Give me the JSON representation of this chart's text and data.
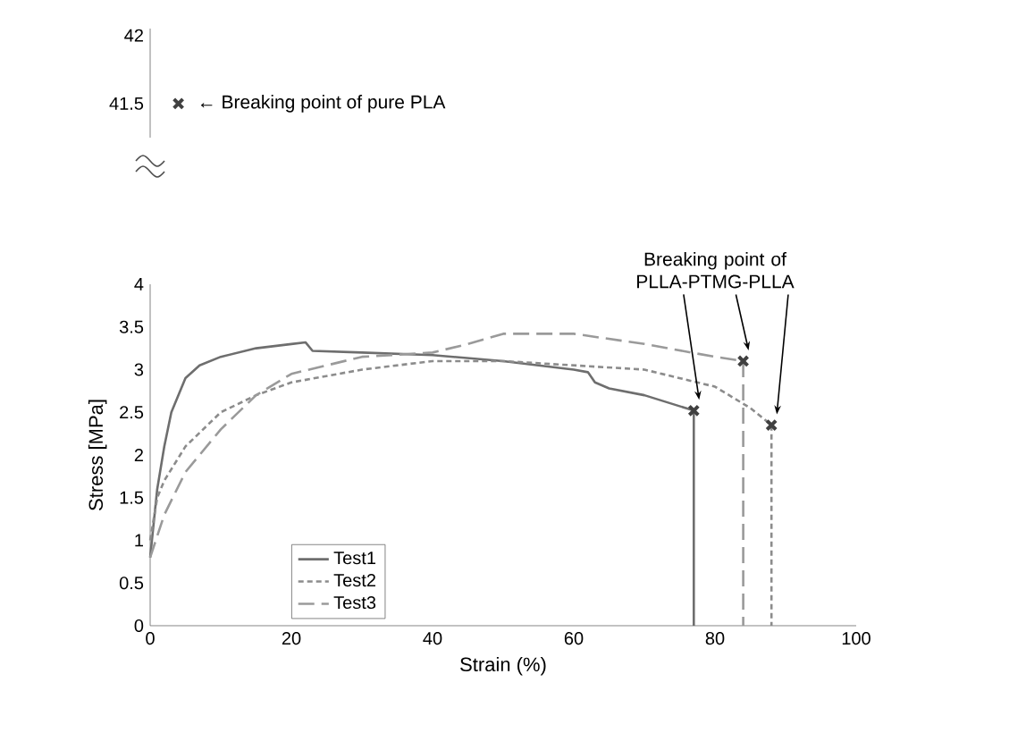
{
  "chart_data": [
    {
      "type": "scatter",
      "xlim": [
        0,
        100
      ],
      "ylim": [
        41.25,
        42.05
      ],
      "yticks": [
        41.5,
        42
      ],
      "tick_labels": "y",
      "grid": false,
      "legend": false,
      "series": [
        {
          "color": "#404040",
          "marker": "cross",
          "x": [
            4
          ],
          "values": [
            41.5
          ]
        }
      ],
      "annotations": [
        {
          "text": "← Breaking point of pure PLA",
          "x": 4,
          "y": 41.5
        }
      ]
    },
    {
      "type": "line",
      "xlabel": "Strain (%)",
      "ylabel": "Stress [MPa]",
      "xlim": [
        0,
        100
      ],
      "ylim": [
        0,
        4
      ],
      "xticks": [
        0,
        20,
        40,
        60,
        80,
        100
      ],
      "yticks": [
        0,
        0.5,
        1,
        1.5,
        2,
        2.5,
        3,
        3.5,
        4
      ],
      "grid": false,
      "legend": "bottom left",
      "series": [
        {
          "name": "Test1",
          "color": "#6e6e6e",
          "line_style": "solid",
          "x": [
            0,
            1,
            2,
            3,
            5,
            7,
            10,
            15,
            20,
            22,
            23,
            30,
            40,
            50,
            60,
            62,
            63,
            65,
            70,
            77,
            77
          ],
          "values": [
            0.8,
            1.6,
            2.1,
            2.5,
            2.9,
            3.05,
            3.15,
            3.25,
            3.3,
            3.32,
            3.22,
            3.2,
            3.17,
            3.1,
            3.0,
            2.97,
            2.85,
            2.78,
            2.7,
            2.52,
            0
          ]
        },
        {
          "name": "Test2",
          "color": "#8c8c8c",
          "line_style": "dotted",
          "x": [
            0,
            1,
            2,
            5,
            10,
            15,
            20,
            30,
            40,
            50,
            60,
            70,
            80,
            85,
            88,
            88
          ],
          "values": [
            1.0,
            1.5,
            1.7,
            2.1,
            2.5,
            2.7,
            2.85,
            3.0,
            3.1,
            3.1,
            3.05,
            3.0,
            2.8,
            2.55,
            2.35,
            0
          ]
        },
        {
          "name": "Test3",
          "color": "#9a9a9a",
          "line_style": "dashed",
          "x": [
            0,
            2,
            5,
            10,
            15,
            20,
            30,
            40,
            45,
            50,
            60,
            70,
            80,
            84,
            84
          ],
          "values": [
            0.8,
            1.3,
            1.8,
            2.3,
            2.7,
            2.95,
            3.15,
            3.2,
            3.3,
            3.42,
            3.42,
            3.3,
            3.15,
            3.1,
            0
          ]
        },
        {
          "type": "scatter",
          "color": "#404040",
          "marker": "cross",
          "x": [
            77,
            84,
            88
          ],
          "values": [
            2.52,
            3.1,
            2.35
          ]
        }
      ],
      "annotations": [
        "Breaking point of PLLA-PTMG-PLLA"
      ]
    }
  ]
}
